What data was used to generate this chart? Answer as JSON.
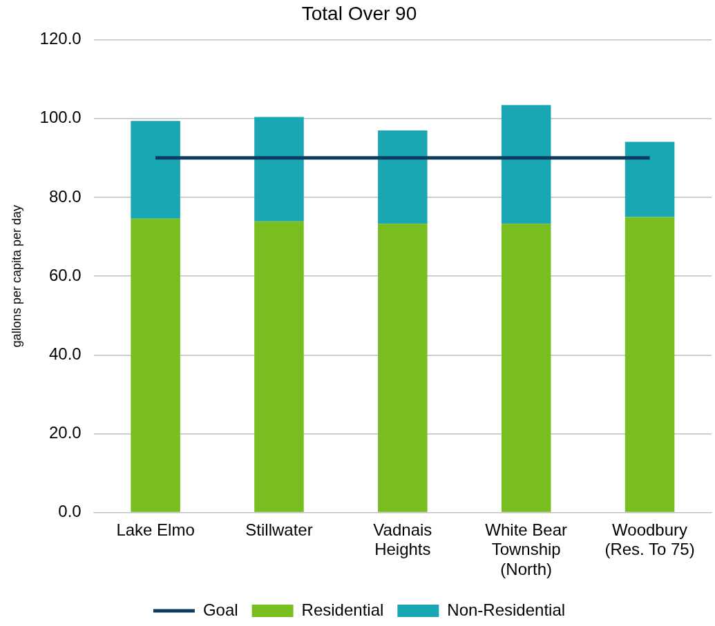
{
  "chart_data": {
    "type": "bar",
    "title": "Total Over 90",
    "ylabel": "gallons per capita per day",
    "categories": [
      "Lake Elmo",
      "Stillwater",
      "Vadnais Heights",
      "White Bear Township (North)",
      "Woodbury (Res. To 75)"
    ],
    "stacked": true,
    "series": [
      {
        "name": "Residential",
        "color": "#78be20",
        "values": [
          74.6,
          73.9,
          73.3,
          73.3,
          75.0
        ]
      },
      {
        "name": "Non-Residential",
        "color": "#1aa7b4",
        "values": [
          24.8,
          26.5,
          23.7,
          30.1,
          19.1
        ]
      },
      {
        "name": "Goal",
        "type": "line",
        "color": "#0c3c60",
        "values": [
          90,
          90,
          90,
          90,
          90
        ]
      }
    ],
    "ylim": [
      0,
      120
    ],
    "yticks": [
      {
        "value": 0,
        "label": "0.0"
      },
      {
        "value": 20,
        "label": "20.0"
      },
      {
        "value": 40,
        "label": "40.0"
      },
      {
        "value": 60,
        "label": "60.0"
      },
      {
        "value": 80,
        "label": "80.0"
      },
      {
        "value": 100,
        "label": "100.0"
      },
      {
        "value": 120,
        "label": "120.0"
      }
    ],
    "grid": "y",
    "legend": "bottom",
    "marker": "none"
  }
}
